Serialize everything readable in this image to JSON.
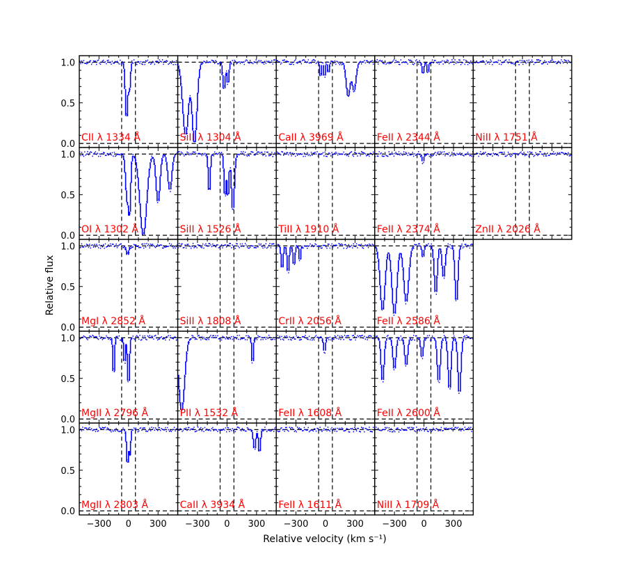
{
  "chart_data": {
    "type": "line",
    "xlabel": "Relative velocity (km s⁻¹)",
    "ylabel": "Relative flux",
    "xlim": [
      -500,
      500
    ],
    "ylim": [
      -0.05,
      1.08
    ],
    "x_ticks": [
      "−300",
      "0",
      "300"
    ],
    "y_ticks": [
      "0.0",
      "0.5",
      "1.0"
    ],
    "x_tick_values": [
      -300,
      0,
      300
    ],
    "y_tick_values": [
      0.0,
      0.5,
      1.0
    ],
    "reference_velocities": [
      -70,
      70
    ],
    "colors": {
      "spectrum": "#0000ff",
      "label": "#ff0000",
      "reference": "#000000"
    },
    "panels": [
      {
        "label": "CII λ 1334 Å",
        "row": 0,
        "col": 0,
        "absorptions": [
          [
            -20,
            0.72,
            12
          ],
          [
            10,
            0.35,
            10
          ]
        ]
      },
      {
        "label": "SiII λ 1304 Å",
        "row": 0,
        "col": 1,
        "absorptions": [
          [
            -30,
            0.35,
            12
          ],
          [
            10,
            0.28,
            10
          ]
        ],
        "blends": [
          [
            -420,
            0.9,
            30
          ],
          [
            -330,
            1.0,
            25
          ]
        ]
      },
      {
        "label": "CaII λ 3969 Å",
        "row": 0,
        "col": 2,
        "absorptions": [
          [
            -50,
            0.2,
            8
          ],
          [
            -10,
            0.2,
            8
          ],
          [
            30,
            0.15,
            8
          ]
        ],
        "blends": [
          [
            230,
            0.42,
            20
          ],
          [
            290,
            0.35,
            20
          ]
        ]
      },
      {
        "label": "FeII λ 2344 Å",
        "row": 0,
        "col": 3,
        "absorptions": [
          [
            -10,
            0.15,
            10
          ],
          [
            40,
            0.15,
            8
          ]
        ]
      },
      {
        "label": "NiII λ 1751 Å",
        "row": 0,
        "col": 4,
        "absorptions": []
      },
      {
        "label": "OI λ 1302 Å",
        "row": 1,
        "col": 0,
        "absorptions": [
          [
            -15,
            0.55,
            15
          ],
          [
            10,
            0.75,
            12
          ]
        ],
        "blends": [
          [
            150,
            1.0,
            35
          ],
          [
            300,
            0.6,
            20
          ],
          [
            420,
            0.45,
            20
          ]
        ]
      },
      {
        "label": "SiII λ 1526 Å",
        "row": 1,
        "col": 1,
        "absorptions": [
          [
            -20,
            0.55,
            10
          ],
          [
            10,
            0.55,
            10
          ]
        ],
        "blends": [
          [
            -180,
            0.5,
            10
          ],
          [
            60,
            0.7,
            15
          ]
        ]
      },
      {
        "label": "TiII λ 1910 Å",
        "row": 1,
        "col": 2,
        "absorptions": []
      },
      {
        "label": "FeII λ 2374 Å",
        "row": 1,
        "col": 3,
        "absorptions": [
          [
            -10,
            0.1,
            10
          ]
        ]
      },
      {
        "label": "ZnII λ 2026 Å",
        "row": 1,
        "col": 4,
        "absorptions": []
      },
      {
        "label": "MgI λ 2852 Å",
        "row": 2,
        "col": 0,
        "absorptions": [
          [
            -10,
            0.12,
            12
          ]
        ]
      },
      {
        "label": "SiII λ 1808 Å",
        "row": 2,
        "col": 1,
        "absorptions": []
      },
      {
        "label": "CrII λ 2056 Å",
        "row": 2,
        "col": 2,
        "absorptions": [
          [
            -440,
            0.3,
            10
          ],
          [
            -380,
            0.35,
            10
          ],
          [
            -320,
            0.25,
            10
          ],
          [
            -260,
            0.2,
            8
          ]
        ]
      },
      {
        "label": "FeII λ 2586 Å",
        "row": 2,
        "col": 3,
        "absorptions": [
          [
            -10,
            0.15,
            10
          ]
        ],
        "blends": [
          [
            -420,
            0.8,
            25
          ],
          [
            -300,
            0.85,
            25
          ],
          [
            -180,
            0.7,
            25
          ],
          [
            120,
            0.6,
            15
          ],
          [
            200,
            0.4,
            15
          ],
          [
            330,
            0.7,
            15
          ]
        ]
      },
      {
        "label": "MgII λ 2796 Å",
        "row": 3,
        "col": 0,
        "absorptions": [
          [
            -150,
            0.5,
            8
          ],
          [
            -40,
            0.35,
            8
          ],
          [
            0,
            0.6,
            10
          ]
        ]
      },
      {
        "label": "PII λ 1532 Å",
        "row": 3,
        "col": 1,
        "absorptions": [
          [
            260,
            0.35,
            8
          ]
        ],
        "blends": [
          [
            -460,
            0.9,
            30
          ]
        ]
      },
      {
        "label": "FeII λ 1608 Å",
        "row": 3,
        "col": 2,
        "absorptions": [
          [
            -10,
            0.18,
            10
          ]
        ]
      },
      {
        "label": "FeII λ 2600 Å",
        "row": 3,
        "col": 3,
        "absorptions": [
          [
            -20,
            0.25,
            12
          ]
        ],
        "blends": [
          [
            -420,
            0.55,
            15
          ],
          [
            -300,
            0.4,
            15
          ],
          [
            -180,
            0.35,
            15
          ],
          [
            150,
            0.55,
            15
          ],
          [
            260,
            0.65,
            15
          ],
          [
            360,
            0.7,
            15
          ]
        ]
      },
      {
        "label": "MgII λ 2803 Å",
        "row": 4,
        "col": 0,
        "absorptions": [
          [
            -10,
            0.45,
            10
          ],
          [
            15,
            0.3,
            8
          ]
        ]
      },
      {
        "label": "CaII λ 3934 Å",
        "row": 4,
        "col": 1,
        "absorptions": [
          [
            280,
            0.25,
            12
          ],
          [
            330,
            0.3,
            10
          ]
        ]
      },
      {
        "label": "FeII λ 1611 Å",
        "row": 4,
        "col": 2,
        "absorptions": []
      },
      {
        "label": "NiII λ 1709 Å",
        "row": 4,
        "col": 3,
        "absorptions": []
      }
    ]
  }
}
